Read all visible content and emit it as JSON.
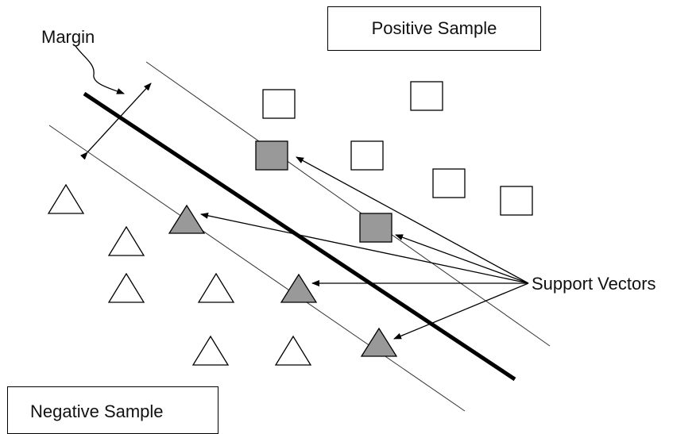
{
  "labels": {
    "margin": "Margin",
    "positive_sample": "Positive Sample",
    "negative_sample": "Negative Sample",
    "support_vectors": "Support Vectors"
  },
  "colors": {
    "stroke": "#000000",
    "support_vector_fill": "#999999",
    "sample_fill": "#ffffff"
  },
  "samples": {
    "positive_count": 5,
    "negative_count": 7,
    "positive_support_vectors": 2,
    "negative_support_vectors": 3
  }
}
